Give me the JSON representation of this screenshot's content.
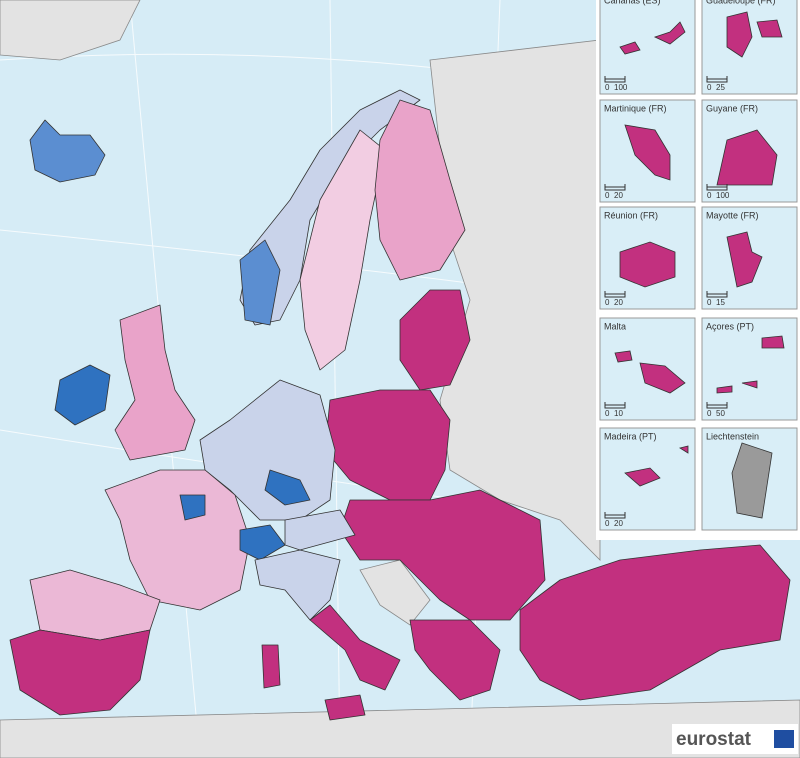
{
  "insets": [
    {
      "label": "Canarias (ES)",
      "scale": [
        0,
        100
      ]
    },
    {
      "label": "Guadeloupe (FR)",
      "scale": [
        0,
        25
      ]
    },
    {
      "label": "Martinique (FR)",
      "scale": [
        0,
        20
      ]
    },
    {
      "label": "Guyane (FR)",
      "scale": [
        0,
        100
      ]
    },
    {
      "label": "Réunion (FR)",
      "scale": [
        0,
        20
      ]
    },
    {
      "label": "Mayotte (FR)",
      "scale": [
        0,
        15
      ]
    },
    {
      "label": "Malta",
      "scale": [
        0,
        10
      ]
    },
    {
      "label": "Açores (PT)",
      "scale": [
        0,
        50
      ]
    },
    {
      "label": "Madeira (PT)",
      "scale": [
        0,
        20
      ]
    },
    {
      "label": "Liechtenstein"
    }
  ],
  "logo": "eurostat"
}
